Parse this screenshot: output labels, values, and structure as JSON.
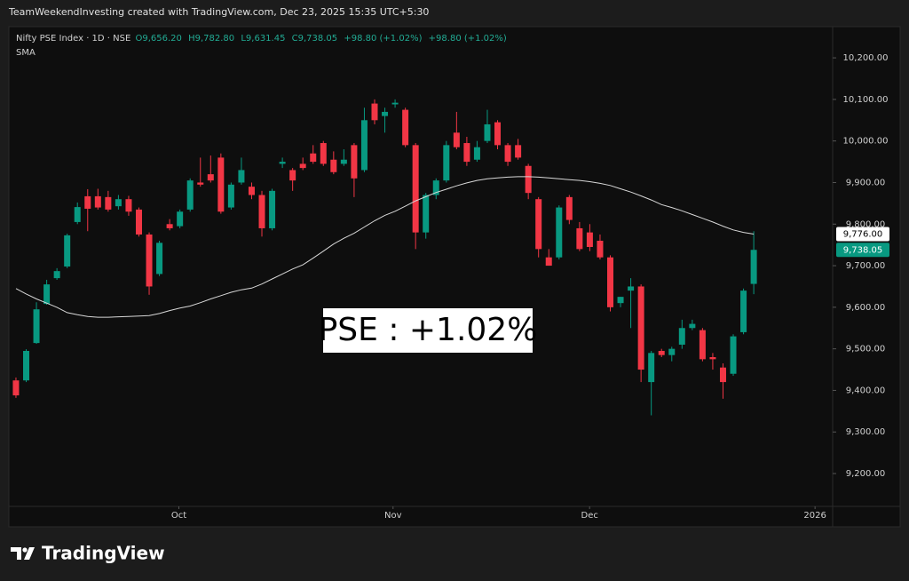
{
  "header": "TeamWeekendInvesting created with TradingView.com, Dec 23, 2025 15:35 UTC+5:30",
  "chart_data": {
    "type": "candlestick",
    "symbol": "Nifty PSE Index · 1D · NSE",
    "legend_values": [
      "O9,656.20",
      "H9,782.80",
      "L9,631.45",
      "C9,738.05",
      "+98.80 (+1.02%)",
      "+98.80 (+1.02%)"
    ],
    "indicator": "SMA",
    "open": [
      9424,
      9424,
      9514,
      9608,
      9670,
      9698,
      9805,
      9867,
      9867,
      9865,
      9843,
      9860,
      9835,
      9775,
      9680,
      9800,
      9795,
      9835,
      9900,
      9920,
      9960,
      9840,
      9900,
      9890,
      9870,
      9790,
      9945,
      9930,
      9945,
      9970,
      9995,
      9955,
      9945,
      9990,
      9930,
      10090,
      10060,
      10088,
      10075,
      9990,
      9780,
      9870,
      9905,
      10020,
      9995,
      9955,
      10000,
      10045,
      9990,
      9990,
      9940,
      9860,
      9720,
      9720,
      9865,
      9790,
      9780,
      9760,
      9720,
      9610,
      9640,
      9650,
      9420,
      9495,
      9485,
      9510,
      9550,
      9545,
      9480,
      9455,
      9440,
      9540,
      9656.2
    ],
    "high": [
      9431,
      9499,
      9612,
      9666,
      9694,
      9777,
      9852,
      9884,
      9885,
      9880,
      9870,
      9868,
      9840,
      9780,
      9760,
      9812,
      9835,
      9910,
      9960,
      9965,
      9970,
      9900,
      9960,
      9900,
      9880,
      9885,
      9960,
      9935,
      9960,
      9990,
      10000,
      9975,
      9980,
      9995,
      10080,
      10100,
      10080,
      10100,
      10080,
      9995,
      9875,
      9910,
      10000,
      10070,
      10010,
      10000,
      10075,
      10050,
      9995,
      10005,
      9945,
      9865,
      9740,
      9845,
      9870,
      9805,
      9800,
      9775,
      9725,
      9625,
      9670,
      9655,
      9495,
      9500,
      9505,
      9570,
      9570,
      9550,
      9490,
      9465,
      9535,
      9645,
      9782.8
    ],
    "low": [
      9382,
      9420,
      9512,
      9606,
      9666,
      9694,
      9800,
      9783,
      9835,
      9830,
      9835,
      9820,
      9770,
      9630,
      9675,
      9785,
      9790,
      9830,
      9890,
      9900,
      9825,
      9835,
      9895,
      9860,
      9770,
      9785,
      9935,
      9880,
      9930,
      9945,
      9940,
      9920,
      9940,
      9865,
      9925,
      10040,
      10020,
      10080,
      9985,
      9740,
      9765,
      9860,
      9900,
      9980,
      9940,
      9950,
      9995,
      9980,
      9940,
      9955,
      9860,
      9720,
      9700,
      9715,
      9800,
      9735,
      9735,
      9715,
      9590,
      9600,
      9550,
      9420,
      9340,
      9480,
      9470,
      9500,
      9545,
      9470,
      9450,
      9380,
      9435,
      9535,
      9631.45
    ],
    "close": [
      9388,
      9495,
      9595,
      9655,
      9687,
      9773,
      9841,
      9837,
      9840,
      9835,
      9860,
      9830,
      9775,
      9650,
      9755,
      9790,
      9830,
      9905,
      9895,
      9905,
      9830,
      9895,
      9930,
      9870,
      9790,
      9880,
      9950,
      9905,
      9935,
      9950,
      9945,
      9925,
      9955,
      9910,
      10050,
      10050,
      10070,
      10092,
      9990,
      9780,
      9870,
      9905,
      9990,
      9985,
      9950,
      9985,
      10040,
      9990,
      9950,
      9960,
      9875,
      9740,
      9700,
      9840,
      9810,
      9740,
      9745,
      9720,
      9600,
      9625,
      9650,
      9450,
      9490,
      9485,
      9500,
      9550,
      9560,
      9475,
      9475,
      9420,
      9530,
      9640,
      9738.05
    ],
    "sma": [
      9645,
      9632,
      9620,
      9610,
      9600,
      9587,
      9582,
      9578,
      9576,
      9576,
      9577,
      9578,
      9579,
      9580,
      9585,
      9592,
      9598,
      9603,
      9611,
      9620,
      9628,
      9636,
      9642,
      9646,
      9656,
      9668,
      9680,
      9692,
      9702,
      9718,
      9735,
      9752,
      9766,
      9778,
      9793,
      9808,
      9821,
      9831,
      9843,
      9856,
      9866,
      9876,
      9884,
      9892,
      9899,
      9905,
      9909,
      9911,
      9913,
      9914,
      9914,
      9913,
      9911,
      9909,
      9907,
      9905,
      9902,
      9898,
      9893,
      9885,
      9877,
      9868,
      9858,
      9847,
      9840,
      9832,
      9823,
      9814,
      9805,
      9795,
      9786,
      9780,
      9776
    ],
    "up_color": "#089981",
    "down_color": "#f23645",
    "sma_color": "#d8d8d8",
    "ylim": [
      9121,
      10275
    ],
    "yticks": [
      {
        "value": 9200,
        "label": "9,200.00"
      },
      {
        "value": 9300,
        "label": "9,300.00"
      },
      {
        "value": 9400,
        "label": "9,400.00"
      },
      {
        "value": 9500,
        "label": "9,500.00"
      },
      {
        "value": 9600,
        "label": "9,600.00"
      },
      {
        "value": 9700,
        "label": "9,700.00"
      },
      {
        "value": 9800,
        "label": "9,800.00"
      },
      {
        "value": 9900,
        "label": "9,900.00"
      },
      {
        "value": 10000,
        "label": "10,000.00"
      },
      {
        "value": 10100,
        "label": "10,100.00"
      },
      {
        "value": 10200,
        "label": "10,200.00"
      }
    ],
    "xlim": [
      -0.69,
      79.7
    ],
    "xticks": [
      {
        "value": 15.9,
        "label": "Oct"
      },
      {
        "value": 36.8,
        "label": "Nov"
      },
      {
        "value": 55.98,
        "label": "Dec"
      },
      {
        "value": 77.98,
        "label": "2026"
      }
    ],
    "price_labels": [
      {
        "value": 9776,
        "label": "9,776.00"
      },
      {
        "value": 9738.05,
        "label": "9,738.05"
      }
    ],
    "annotation": "PSE : +1.02%"
  },
  "footer": "TradingView"
}
